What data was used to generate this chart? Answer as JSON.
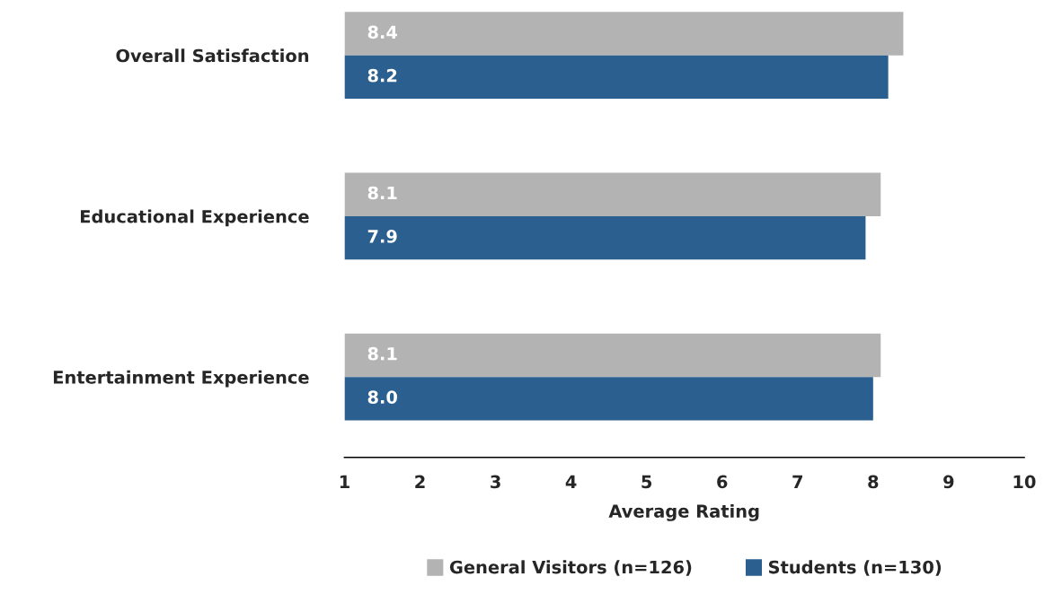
{
  "chart_data": {
    "type": "bar",
    "orientation": "horizontal",
    "xlabel": "Average Rating",
    "categories": [
      "Overall Satisfaction",
      "Educational Experience",
      "Entertainment Experience"
    ],
    "series": [
      {
        "name": "General Visitors (n=126)",
        "color": "#b3b3b3",
        "values": [
          8.4,
          8.1,
          8.1
        ],
        "value_labels": [
          "8.4",
          "8.1",
          "8.1"
        ]
      },
      {
        "name": "Students (n=130)",
        "color": "#2a5f8f",
        "values": [
          8.2,
          7.9,
          8.0
        ],
        "value_labels": [
          "8.2",
          "7.9",
          "8.0"
        ]
      }
    ],
    "xlim": [
      1,
      10
    ],
    "xticks": [
      1,
      2,
      3,
      4,
      5,
      6,
      7,
      8,
      9,
      10
    ],
    "grid": false,
    "legend": "bottom"
  }
}
